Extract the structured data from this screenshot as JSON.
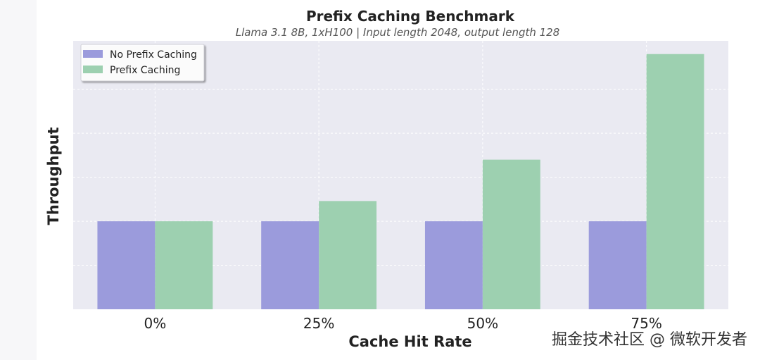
{
  "chart_data": {
    "type": "bar",
    "title": "Prefix Caching Benchmark",
    "subtitle": "Llama 3.1 8B, 1xH100 | Input length 2048, output length 128",
    "xlabel": "Cache Hit Rate",
    "ylabel": "Throughput",
    "categories": [
      "0%",
      "25%",
      "50%",
      "75%"
    ],
    "series": [
      {
        "name": "No Prefix Caching",
        "values": [
          1.0,
          1.0,
          1.0,
          1.0
        ],
        "color": "#9b9bdc"
      },
      {
        "name": "Prefix Caching",
        "values": [
          1.0,
          1.23,
          1.7,
          2.9
        ],
        "color": "#9dd0b0"
      }
    ],
    "ylim": [
      0,
      3.05
    ],
    "y_ticks_labeled": false,
    "grid": true,
    "legend_position": "top-left",
    "background": "#eaeaf2"
  },
  "watermark": "掘金技术社区 @ 微软开发者"
}
